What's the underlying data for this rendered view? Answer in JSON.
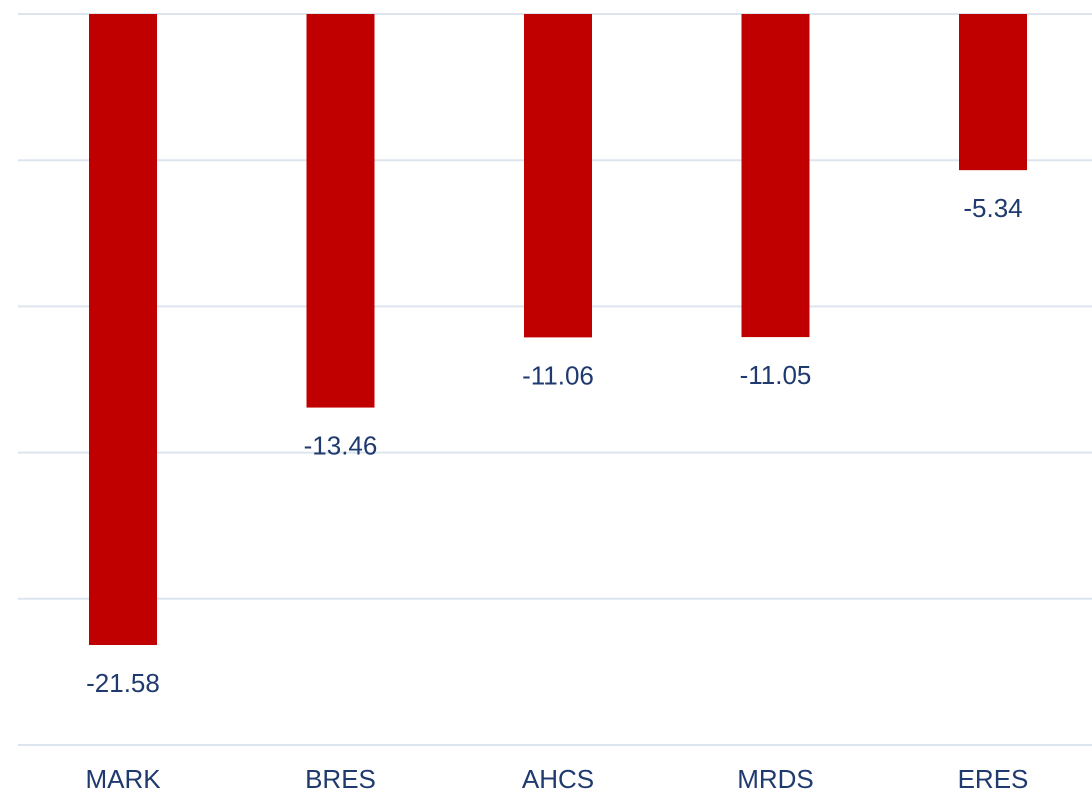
{
  "chart_data": {
    "type": "bar",
    "categories": [
      "MARK",
      "BRES",
      "AHCS",
      "MRDS",
      "ERES"
    ],
    "values": [
      -21.58,
      -13.46,
      -11.06,
      -11.05,
      -5.34
    ],
    "title": "",
    "xlabel": "",
    "ylabel": "",
    "ylim": [
      -25,
      0
    ],
    "grid": true,
    "legend": "none",
    "colors": {
      "bar": "#c00000",
      "label": "#1f3a6e",
      "grid": "#dde5ef"
    }
  }
}
